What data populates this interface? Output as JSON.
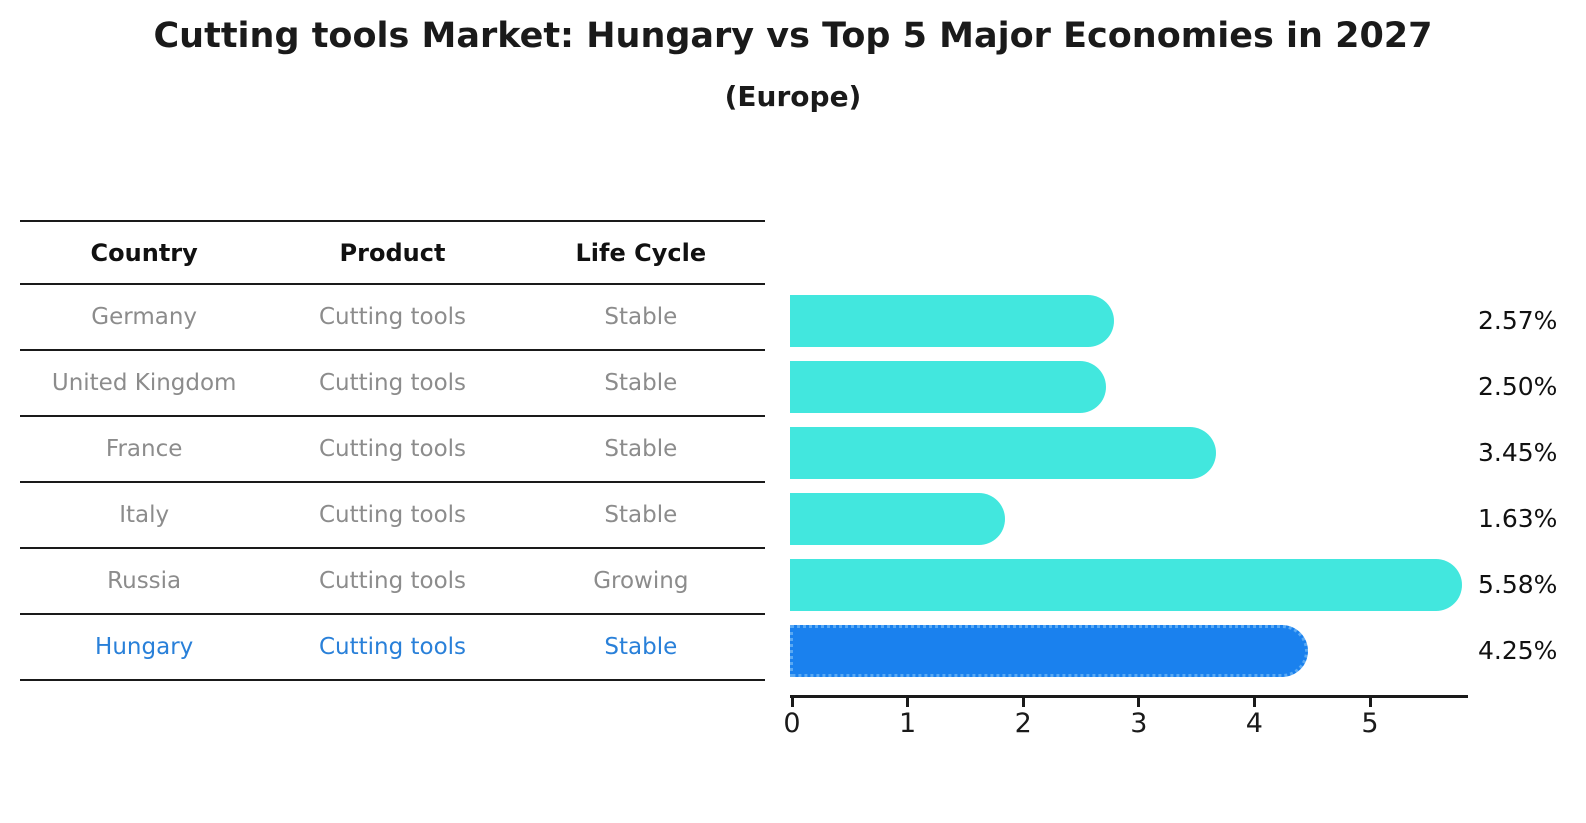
{
  "title": "Cutting tools Market: Hungary vs Top 5 Major Economies in 2027",
  "subtitle": "(Europe)",
  "table": {
    "headers": [
      "Country",
      "Product",
      "Life Cycle"
    ],
    "rows": [
      {
        "country": "Germany",
        "product": "Cutting tools",
        "life_cycle": "Stable"
      },
      {
        "country": "United Kingdom",
        "product": "Cutting tools",
        "life_cycle": "Stable"
      },
      {
        "country": "France",
        "product": "Cutting tools",
        "life_cycle": "Stable"
      },
      {
        "country": "Italy",
        "product": "Cutting tools",
        "life_cycle": "Stable"
      },
      {
        "country": "Russia",
        "product": "Cutting tools",
        "life_cycle": "Growing"
      },
      {
        "country": "Hungary",
        "product": "Cutting tools",
        "life_cycle": "Stable"
      }
    ],
    "highlight_row_index": 5
  },
  "chart_data": {
    "type": "bar",
    "orientation": "horizontal",
    "categories": [
      "Germany",
      "United Kingdom",
      "France",
      "Italy",
      "Russia",
      "Hungary"
    ],
    "values": [
      2.57,
      2.5,
      3.45,
      1.63,
      5.58,
      4.25
    ],
    "value_labels": [
      "2.57%",
      "2.50%",
      "3.45%",
      "1.63%",
      "5.58%",
      "4.25%"
    ],
    "x_ticks": [
      "0",
      "1",
      "2",
      "3",
      "4",
      "5"
    ],
    "xlim": [
      0,
      5.85
    ],
    "grid": false,
    "legend": "none",
    "bar_color": "#42e7de",
    "highlight_bar_color": "#1a81ee",
    "highlight_index": 5,
    "highlight_category": "Hungary"
  },
  "colors": {
    "title_text": "#1a1a1a",
    "row_text": "#8c8c8c",
    "highlight_text": "#2980d9",
    "axis_line": "#1a1a1a"
  }
}
